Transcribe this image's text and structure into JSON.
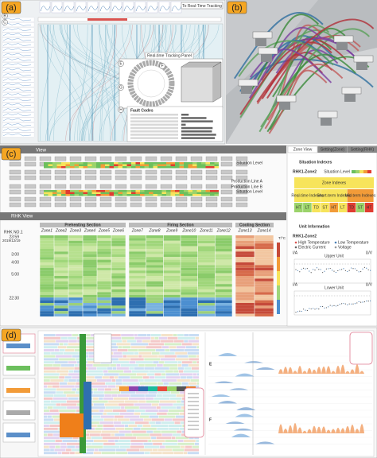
{
  "panels": [
    "(a)",
    "(b)",
    "(c)",
    "(d)"
  ],
  "panel_a": {
    "button": "To Real-Time Tracking",
    "markers": [
      "A",
      "B",
      "C",
      "E",
      "F",
      "G",
      "H"
    ],
    "tracking_panel": "Real-time Tracking Panel",
    "fault_codes": "Fault Codes"
  },
  "panel_c": {
    "view_title": "View",
    "lines": [
      "Production Line A",
      "Production Line B"
    ],
    "situation_level": "Situation Level",
    "rhk_view": "RHK View",
    "rhk": "RHK NO.1",
    "date": "2019/12/19",
    "sections": [
      {
        "name": "Preheating Section",
        "zones": [
          "Zone1",
          "Zone2",
          "Zone3",
          "Zone4",
          "Zone5",
          "Zone6"
        ]
      },
      {
        "name": "Firing Section",
        "zones": [
          "Zone7",
          "Zone8",
          "Zone9",
          "Zone10",
          "Zone11",
          "Zone12"
        ]
      },
      {
        "name": "Cooling Section",
        "zones": [
          "Zone13",
          "Zone14"
        ]
      }
    ],
    "times": [
      "23:59",
      "3:00",
      "4:00",
      "5:00",
      "22:30"
    ],
    "unit": "T/°C",
    "side": {
      "tabs": [
        "Zone View",
        "Setting(Zone)",
        "Setting(RHK)"
      ],
      "situation_indexes": "Situation Indexes",
      "zone_name": "RHK1-Zone2",
      "situation_level": "Situation Level",
      "zone_indexes": "Zone Indexes",
      "index_groups": [
        "Real-time Indexes",
        "Short-term Indexes",
        "Mid-term Indexes"
      ],
      "codes": [
        "HT",
        "LT",
        "TD",
        "ST",
        "HT",
        "LT",
        "TD",
        "ST",
        "HT"
      ],
      "unit_information": "Unit Information",
      "unit_zone": "RHK1-Zone2",
      "legend": [
        "High Temperature",
        "Low Temperature",
        "Electric Current",
        "Voltage"
      ],
      "upper": "Upper Unit",
      "lower": "Lower Unit",
      "axis_left": "I/A",
      "axis_right": "U/V"
    }
  },
  "panel_d": {
    "markers": [
      "E",
      "F"
    ]
  }
}
